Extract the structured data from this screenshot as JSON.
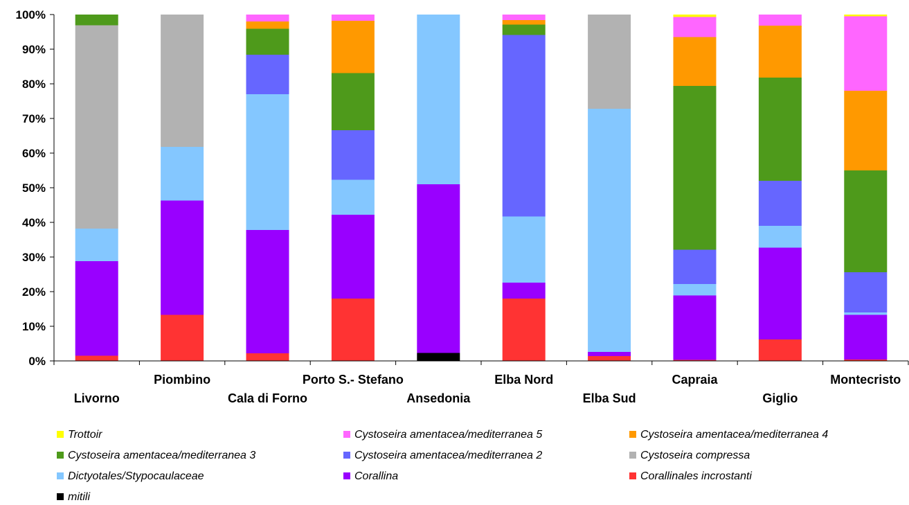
{
  "chart_data": {
    "type": "bar",
    "stacked": "percent",
    "ylim": [
      0,
      100
    ],
    "y_ticks": [
      "0%",
      "10%",
      "20%",
      "30%",
      "40%",
      "50%",
      "60%",
      "70%",
      "80%",
      "90%",
      "100%"
    ],
    "categories": [
      "Livorno",
      "Piombino",
      "Cala di Forno",
      "Porto S.- Stefano",
      "Ansedonia",
      "Elba Nord",
      "Elba Sud",
      "Capraia",
      "Giglio",
      "Montecristo"
    ],
    "legend_position": "bottom",
    "series": [
      {
        "name": "mitili",
        "color": "#000000",
        "values": [
          0,
          0,
          0,
          0,
          2.3,
          0,
          0,
          0,
          0,
          0
        ]
      },
      {
        "name": "Corallinales incrostanti",
        "color": "#ff3333",
        "values": [
          1.5,
          13.3,
          2.2,
          18,
          0,
          18,
          1.4,
          0.3,
          6.2,
          0.4
        ]
      },
      {
        "name": "Corallina",
        "color": "#9900ff",
        "values": [
          27.3,
          33,
          35.6,
          24.2,
          48.7,
          4.6,
          1.2,
          18.6,
          26.5,
          12.9
        ]
      },
      {
        "name": "Dictyotales/Stypocaulaceae",
        "color": "#84c7ff",
        "values": [
          9.4,
          15.5,
          39.2,
          10.1,
          49,
          19.1,
          70.2,
          3.3,
          6.3,
          0.7
        ]
      },
      {
        "name": "Cystoseira amentacea/mediterranea 2",
        "color": "#6666ff",
        "values": [
          0,
          0,
          11.4,
          14.3,
          0,
          52.4,
          0,
          9.9,
          13,
          11.6
        ]
      },
      {
        "name": "Cystoseira compressa",
        "color": "#b2b2b2",
        "values": [
          58.7,
          38.2,
          0,
          0,
          0,
          0,
          27.2,
          0,
          0,
          0
        ]
      },
      {
        "name": "Cystoseira amentacea/mediterranea 3",
        "color": "#4e9a1b",
        "values": [
          3.1,
          0,
          7.5,
          16.5,
          0,
          3,
          0,
          47.3,
          29.8,
          29.4
        ]
      },
      {
        "name": "Cystoseira amentacea/mediterranea 4",
        "color": "#ff9900",
        "values": [
          0,
          0,
          2.1,
          15.1,
          0,
          1.3,
          0,
          14.1,
          15,
          23
        ]
      },
      {
        "name": "Cystoseira amentacea/mediterranea 5",
        "color": "#ff66ff",
        "values": [
          0,
          0,
          2,
          1.8,
          0,
          1.6,
          0,
          5.8,
          3.2,
          21.5
        ]
      },
      {
        "name": "Trottoir",
        "color": "#ffff00",
        "values": [
          0,
          0,
          0,
          0,
          0,
          0,
          0,
          0.7,
          0,
          0.5
        ]
      }
    ],
    "legend_order": [
      "Trottoir",
      "Cystoseira amentacea/mediterranea 5",
      "Cystoseira amentacea/mediterranea 4",
      "Cystoseira amentacea/mediterranea 3",
      "Cystoseira amentacea/mediterranea 2",
      "Cystoseira compressa",
      "Dictyotales/Stypocaulaceae",
      "Corallina",
      "Corallinales incrostanti",
      "mitili"
    ]
  }
}
